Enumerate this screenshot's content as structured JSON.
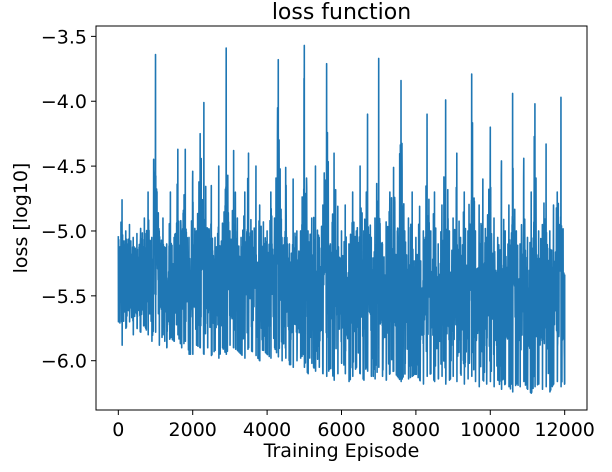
{
  "chart_data": {
    "type": "line",
    "title": "loss function",
    "xlabel": "Training Episode",
    "ylabel": "loss [log10]",
    "xlim": [
      -600,
      12600
    ],
    "ylim": [
      -6.38,
      -3.42
    ],
    "xticks": [
      0,
      2000,
      4000,
      6000,
      8000,
      10000,
      12000
    ],
    "xtick_labels": [
      "0",
      "2000",
      "4000",
      "6000",
      "8000",
      "10000",
      "12000"
    ],
    "yticks": [
      -6.0,
      -5.5,
      -5.0,
      -4.5,
      -4.0,
      -3.5
    ],
    "ytick_labels": [
      "−6.0",
      "−5.5",
      "−5.0",
      "−4.5",
      "−4.0",
      "−3.5"
    ],
    "grid": false,
    "legend": "none",
    "series": [
      {
        "color": "#1f77b4",
        "x": [
          0,
          100,
          200,
          300,
          400,
          500,
          600,
          700,
          800,
          900,
          1000,
          1100,
          1200,
          1300,
          1400,
          1500,
          1600,
          1700,
          1800,
          1900,
          2000,
          2100,
          2200,
          2300,
          2400,
          2500,
          2600,
          2700,
          2800,
          2900,
          3000,
          3100,
          3200,
          3300,
          3400,
          3500,
          3600,
          3700,
          3800,
          3900,
          4000,
          4100,
          4200,
          4300,
          4400,
          4500,
          4600,
          4700,
          4800,
          4900,
          5000,
          5100,
          5200,
          5300,
          5400,
          5500,
          5600,
          5700,
          5800,
          5900,
          6000,
          6100,
          6200,
          6300,
          6400,
          6500,
          6600,
          6700,
          6800,
          6900,
          7000,
          7100,
          7200,
          7300,
          7400,
          7500,
          7600,
          7700,
          7800,
          7900,
          8000,
          8100,
          8200,
          8300,
          8400,
          8500,
          8600,
          8700,
          8800,
          8900,
          9000,
          9100,
          9200,
          9300,
          9400,
          9500,
          9600,
          9700,
          9800,
          9900,
          10000,
          10100,
          10200,
          10300,
          10400,
          10500,
          10600,
          10700,
          10800,
          10900,
          11000,
          11100,
          11200,
          11300,
          11400,
          11500,
          11600,
          11700,
          11800,
          11900,
          12000
        ],
        "upper": [
          -5.04,
          -4.76,
          -5.0,
          -4.95,
          -5.05,
          -5.02,
          -4.98,
          -4.9,
          -4.7,
          -5.05,
          -3.64,
          -5.0,
          -4.9,
          -5.1,
          -4.7,
          -5.05,
          -4.37,
          -5.0,
          -4.37,
          -5.05,
          -4.54,
          -5.0,
          -4.25,
          -4.01,
          -5.0,
          -4.65,
          -5.05,
          -4.5,
          -4.94,
          -3.59,
          -5.0,
          -4.38,
          -4.9,
          -5.05,
          -4.7,
          -4.4,
          -5.0,
          -4.5,
          -4.8,
          -4.93,
          -5.0,
          -4.7,
          -4.9,
          -3.68,
          -5.05,
          -4.51,
          -5.1,
          -4.6,
          -5.0,
          -5.0,
          -3.57,
          -5.0,
          -4.9,
          -4.5,
          -5.05,
          -4.8,
          -3.71,
          -5.1,
          -4.4,
          -4.81,
          -5.0,
          -4.8,
          -5.1,
          -4.7,
          -5.0,
          -4.5,
          -5.0,
          -4.1,
          -5.05,
          -4.9,
          -3.67,
          -5.1,
          -4.93,
          -4.7,
          -4.51,
          -5.0,
          -3.84,
          -5.0,
          -4.9,
          -4.7,
          -5.05,
          -4.81,
          -5.0,
          -4.1,
          -5.0,
          -4.7,
          -5.1,
          -4.8,
          -3.99,
          -5.0,
          -4.9,
          -4.4,
          -5.05,
          -4.7,
          -5.0,
          -3.79,
          -5.0,
          -4.8,
          -4.6,
          -5.05,
          -4.2,
          -4.9,
          -5.05,
          -4.46,
          -5.0,
          -4.8,
          -3.94,
          -5.0,
          -5.1,
          -4.44,
          -5.05,
          -4.7,
          -4.02,
          -5.0,
          -4.95,
          -4.33,
          -5.0,
          -4.8,
          -4.7,
          -3.97,
          -5.34
        ],
        "lower": [
          -5.7,
          -5.88,
          -5.75,
          -5.7,
          -5.8,
          -5.75,
          -5.78,
          -5.72,
          -5.8,
          -5.85,
          -5.78,
          -5.88,
          -5.8,
          -5.9,
          -5.82,
          -5.85,
          -5.8,
          -5.9,
          -5.85,
          -5.95,
          -5.95,
          -5.88,
          -5.9,
          -5.95,
          -5.9,
          -5.96,
          -5.92,
          -5.98,
          -5.9,
          -5.95,
          -5.88,
          -5.9,
          -5.92,
          -5.95,
          -5.98,
          -5.9,
          -5.93,
          -5.96,
          -6.0,
          -5.92,
          -5.95,
          -5.98,
          -5.9,
          -5.97,
          -6.0,
          -5.98,
          -6.03,
          -6.05,
          -6.0,
          -5.98,
          -6.05,
          -6.1,
          -6.02,
          -6.08,
          -6.05,
          -6.1,
          -6.12,
          -6.05,
          -6.15,
          -6.1,
          -6.02,
          -6.1,
          -6.16,
          -6.12,
          -6.05,
          -6.1,
          -6.15,
          -6.08,
          -6.12,
          -6.14,
          -6.05,
          -6.12,
          -6.15,
          -6.1,
          -6.08,
          -6.12,
          -6.16,
          -6.1,
          -6.14,
          -6.12,
          -6.1,
          -6.15,
          -6.18,
          -6.12,
          -6.1,
          -6.16,
          -6.14,
          -6.12,
          -6.18,
          -6.15,
          -6.12,
          -6.16,
          -6.1,
          -6.18,
          -6.14,
          -6.12,
          -6.16,
          -6.2,
          -6.15,
          -6.18,
          -6.16,
          -6.2,
          -6.15,
          -6.22,
          -6.18,
          -6.2,
          -6.24,
          -6.18,
          -6.2,
          -6.16,
          -6.22,
          -6.25,
          -6.2,
          -6.18,
          -6.22,
          -6.2,
          -6.24,
          -6.18,
          -6.16,
          -6.2,
          -6.18
        ]
      }
    ]
  }
}
